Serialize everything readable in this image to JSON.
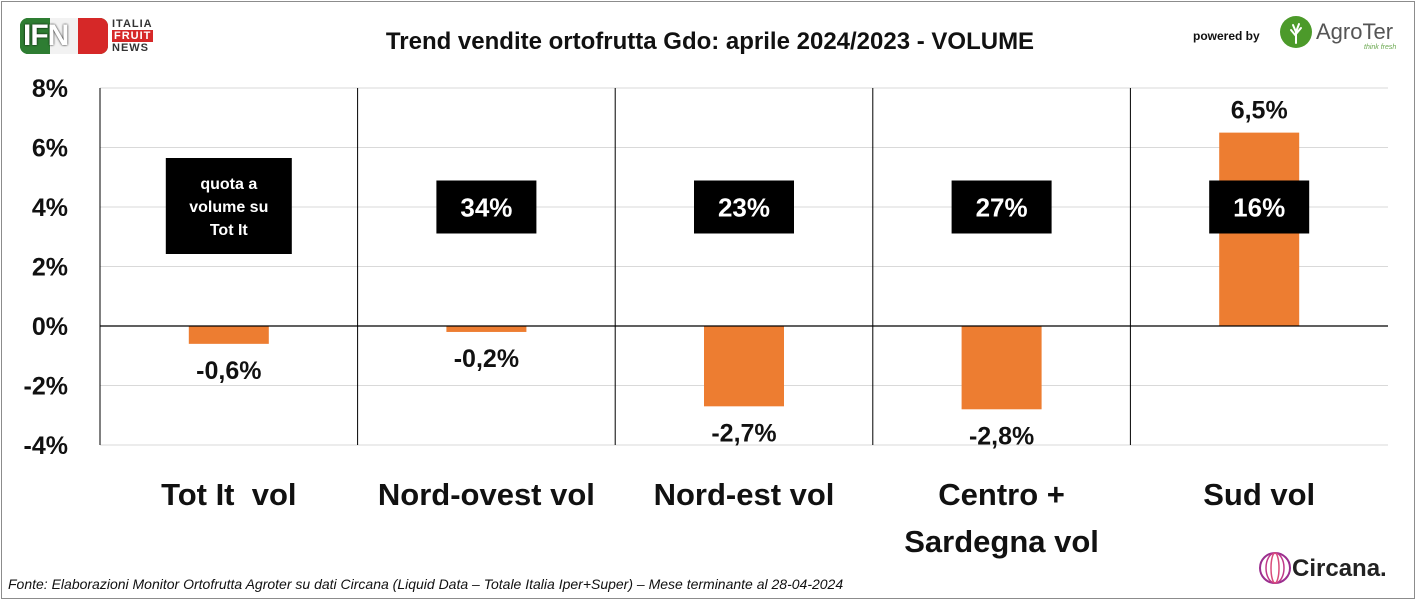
{
  "header": {
    "title": "Trend vendite ortofrutta Gdo: aprile 2024/2023 - VOLUME",
    "powered_by": "powered by"
  },
  "logos": {
    "ifn_letters": "IFN",
    "ifn_line1": "ITALIA",
    "ifn_line2": "FRUIT",
    "ifn_line3": "NEWS",
    "agroter_name": "AgroTer",
    "agroter_tagline": "think fresh",
    "circana_name": "Circana."
  },
  "footer": {
    "source": "Fonte: Elaborazioni Monitor Ortofrutta Agroter su dati Circana (Liquid Data – Totale Italia Iper+Super) – Mese terminante al 28-04-2024"
  },
  "colors": {
    "bar": "#ED7D31",
    "box": "#000000",
    "box_text": "#FFFFFF",
    "ifn_green": "#2E7D32",
    "ifn_red": "#D62828",
    "agroter_green": "#4C9A2A",
    "circana_purple": "#9B2F8F"
  },
  "chart_data": {
    "type": "bar",
    "title": "Trend vendite ortofrutta Gdo: aprile 2024/2023 - VOLUME",
    "categories": [
      [
        "Tot It  vol"
      ],
      [
        "Nord-ovest vol"
      ],
      [
        "Nord-est vol"
      ],
      [
        "Centro +",
        "Sardegna vol"
      ],
      [
        "Sud vol"
      ]
    ],
    "values": [
      -0.6,
      -0.2,
      -2.7,
      -2.8,
      6.5
    ],
    "value_labels": [
      "-0,6%",
      "-0,2%",
      "-2,7%",
      "-2,8%",
      "6,5%"
    ],
    "share_boxes": [
      [
        "quota a",
        "volume su",
        "Tot It"
      ],
      [
        "34%"
      ],
      [
        "23%"
      ],
      [
        "27%"
      ],
      [
        "16%"
      ]
    ],
    "yticks": [
      8,
      6,
      4,
      2,
      0,
      -2,
      -4
    ],
    "ytick_labels": [
      "8%",
      "6%",
      "4%",
      "2%",
      "0%",
      "-2%",
      "-4%"
    ],
    "ylim": [
      -4,
      8
    ],
    "xlabel": "",
    "ylabel": "",
    "grid": true,
    "legend": "none"
  }
}
